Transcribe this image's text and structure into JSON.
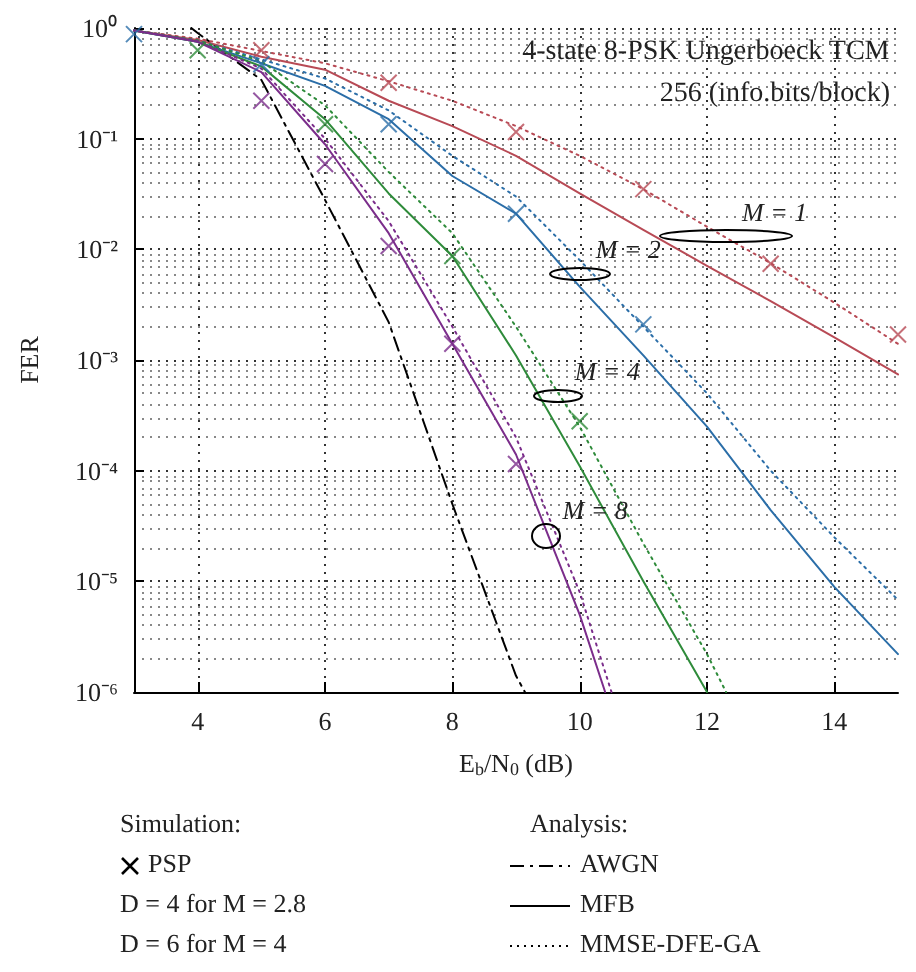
{
  "chart_data": {
    "type": "line",
    "title": "4-state 8-PSK Ungerboeck TCM",
    "subtitle": "256 (info.bits/block)",
    "xlabel": "E$_{b}$/N$_{0}$ (dB)",
    "ylabel": "FER",
    "log": "y",
    "grid": true,
    "xlim": [
      3,
      15
    ],
    "xticks": [
      4,
      6,
      8,
      10,
      12,
      14
    ],
    "ylim": [
      1e-06,
      1
    ],
    "yticks": [
      {
        "value": 1e-06,
        "label": "10⁻⁶"
      },
      {
        "value": 1e-05,
        "label": "10⁻⁵"
      },
      {
        "value": 0.0001,
        "label": "10⁻⁴"
      },
      {
        "value": 0.001,
        "label": "10⁻³"
      },
      {
        "value": 0.01,
        "label": "10⁻²"
      },
      {
        "value": 0.1,
        "label": "10⁻¹"
      },
      {
        "value": 1,
        "label": "10⁰"
      }
    ],
    "series": [
      {
        "type": "line",
        "color": "#000000",
        "line_style": "dashed",
        "marker": "none",
        "x": [
          3.9,
          4,
          5,
          6,
          7,
          8,
          9,
          9.14
        ],
        "values": [
          1,
          0.9,
          0.34,
          0.028,
          0.0022,
          5e-05,
          1.4e-06,
          1e-06
        ]
      },
      {
        "type": "line",
        "color": "#b84a55",
        "line_style": "solid",
        "marker": "none",
        "x": [
          3,
          4,
          5,
          6,
          7,
          8,
          9,
          10,
          11,
          12,
          13,
          14,
          15
        ],
        "values": [
          0.95,
          0.78,
          0.55,
          0.42,
          0.22,
          0.13,
          0.07,
          0.032,
          0.015,
          0.0071,
          0.0034,
          0.0016,
          0.00074
        ]
      },
      {
        "type": "line",
        "color": "#b84a55",
        "line_style": "dotted",
        "marker": "none",
        "x": [
          3,
          4,
          5,
          6,
          7,
          8,
          9,
          10,
          11,
          12,
          13,
          14,
          15
        ],
        "values": [
          0.95,
          0.8,
          0.62,
          0.48,
          0.33,
          0.22,
          0.13,
          0.07,
          0.035,
          0.016,
          0.0075,
          0.0033,
          0.0014
        ]
      },
      {
        "type": "line",
        "color": "#2b6ea8",
        "line_style": "solid",
        "marker": "none",
        "x": [
          3,
          4,
          5,
          6,
          7,
          8,
          9,
          10,
          11,
          12,
          13,
          14,
          15
        ],
        "values": [
          0.95,
          0.75,
          0.48,
          0.3,
          0.15,
          0.046,
          0.021,
          0.0046,
          0.0011,
          0.00025,
          4.4e-05,
          8.9e-06,
          2.2e-06
        ]
      },
      {
        "type": "line",
        "color": "#2b6ea8",
        "line_style": "dotted",
        "marker": "none",
        "x": [
          3,
          4,
          5,
          6,
          7,
          8,
          9,
          10,
          11,
          12,
          13,
          14,
          15
        ],
        "values": [
          0.95,
          0.77,
          0.52,
          0.35,
          0.18,
          0.07,
          0.03,
          0.008,
          0.002,
          0.0005,
          0.0001,
          2.5e-05,
          6.8e-06
        ]
      },
      {
        "type": "line",
        "color": "#2e8b3a",
        "line_style": "solid",
        "marker": "none",
        "x": [
          3,
          4,
          5,
          6,
          7,
          8,
          9,
          10,
          11,
          12
        ],
        "values": [
          0.95,
          0.75,
          0.45,
          0.15,
          0.032,
          0.0087,
          0.0011,
          0.00011,
          1e-05,
          1e-06
        ]
      },
      {
        "type": "line",
        "color": "#2e8b3a",
        "line_style": "dotted",
        "marker": "none",
        "x": [
          3,
          4,
          5,
          6,
          7,
          8,
          9,
          10,
          11,
          12,
          12.3
        ],
        "values": [
          0.95,
          0.77,
          0.5,
          0.2,
          0.05,
          0.014,
          0.002,
          0.00025,
          2.2e-05,
          2.2e-06,
          1e-06
        ]
      },
      {
        "type": "line",
        "color": "#7b2d8b",
        "line_style": "solid",
        "marker": "none",
        "x": [
          3,
          4,
          5,
          6,
          7,
          8,
          9,
          10,
          10.4
        ],
        "values": [
          0.95,
          0.75,
          0.4,
          0.089,
          0.014,
          0.0014,
          0.00014,
          5e-06,
          1e-06
        ]
      },
      {
        "type": "line",
        "color": "#7b2d8b",
        "line_style": "dotted",
        "marker": "none",
        "x": [
          3,
          4,
          5,
          6,
          7,
          8,
          9,
          10,
          10.5
        ],
        "values": [
          0.95,
          0.76,
          0.43,
          0.1,
          0.018,
          0.002,
          0.0002,
          8e-06,
          1e-06
        ]
      },
      {
        "type": "scatter",
        "color": "#b84a55",
        "marker": "cross",
        "x": [
          5,
          7,
          9,
          11,
          13,
          15
        ],
        "values": [
          0.63,
          0.32,
          0.115,
          0.035,
          0.0074,
          0.0017
        ]
      },
      {
        "type": "scatter",
        "color": "#2b6ea8",
        "marker": "cross",
        "x": [
          3,
          5,
          7,
          9,
          11
        ],
        "values": [
          0.88,
          0.47,
          0.135,
          0.021,
          0.0021
        ]
      },
      {
        "type": "scatter",
        "color": "#2e8b3a",
        "marker": "cross",
        "x": [
          4,
          6,
          8,
          10
        ],
        "values": [
          0.63,
          0.135,
          0.0087,
          0.00028
        ]
      },
      {
        "type": "scatter",
        "color": "#7b2d8b",
        "marker": "cross",
        "x": [
          5,
          6,
          7,
          8,
          9
        ],
        "values": [
          0.22,
          0.059,
          0.0107,
          0.0014,
          0.000115
        ]
      }
    ],
    "annotations": [
      {
        "text": "M = 1",
        "x": 12.3,
        "y": 0.013
      },
      {
        "text": "M = 2",
        "x": 10,
        "y": 0.006
      },
      {
        "text": "M = 4",
        "x": 9.67,
        "y": 0.00047
      },
      {
        "text": "M = 8",
        "x": 9.48,
        "y": 2.6e-05
      },
      "Simulation:",
      "PSP",
      "D = 4 for M = 2.8",
      "D = 6 for M = 4",
      "Analysis:",
      "AWGN",
      "MFB",
      "MMSE-DFE-GA"
    ]
  }
}
